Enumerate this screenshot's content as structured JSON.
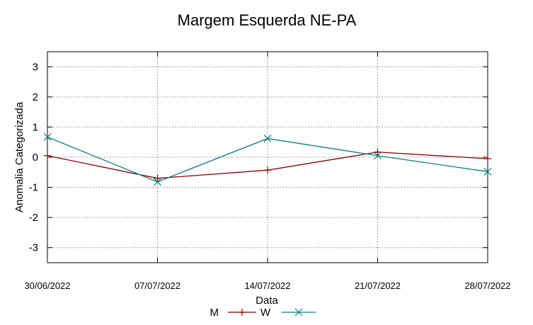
{
  "chart_data": {
    "type": "line",
    "title": "Margem Esquerda NE-PA",
    "xlabel": "Data",
    "ylabel": "Anomalia Categorizada",
    "categories": [
      "30/06/2022",
      "07/07/2022",
      "14/07/2022",
      "21/07/2022",
      "28/07/2022"
    ],
    "ylim": [
      -3.5,
      3.5
    ],
    "yticks": [
      3,
      2,
      1,
      0,
      -1,
      -2,
      -3
    ],
    "grid": true,
    "legend_position": "bottom-center",
    "series": [
      {
        "name": "M",
        "marker": "+",
        "color": "#8b0000",
        "values": [
          0.05,
          -0.7,
          -0.43,
          0.17,
          -0.05
        ]
      },
      {
        "name": "W",
        "marker": "x",
        "color": "#0f7d7d",
        "values": [
          0.67,
          -0.82,
          0.62,
          0.05,
          -0.48
        ]
      }
    ]
  }
}
